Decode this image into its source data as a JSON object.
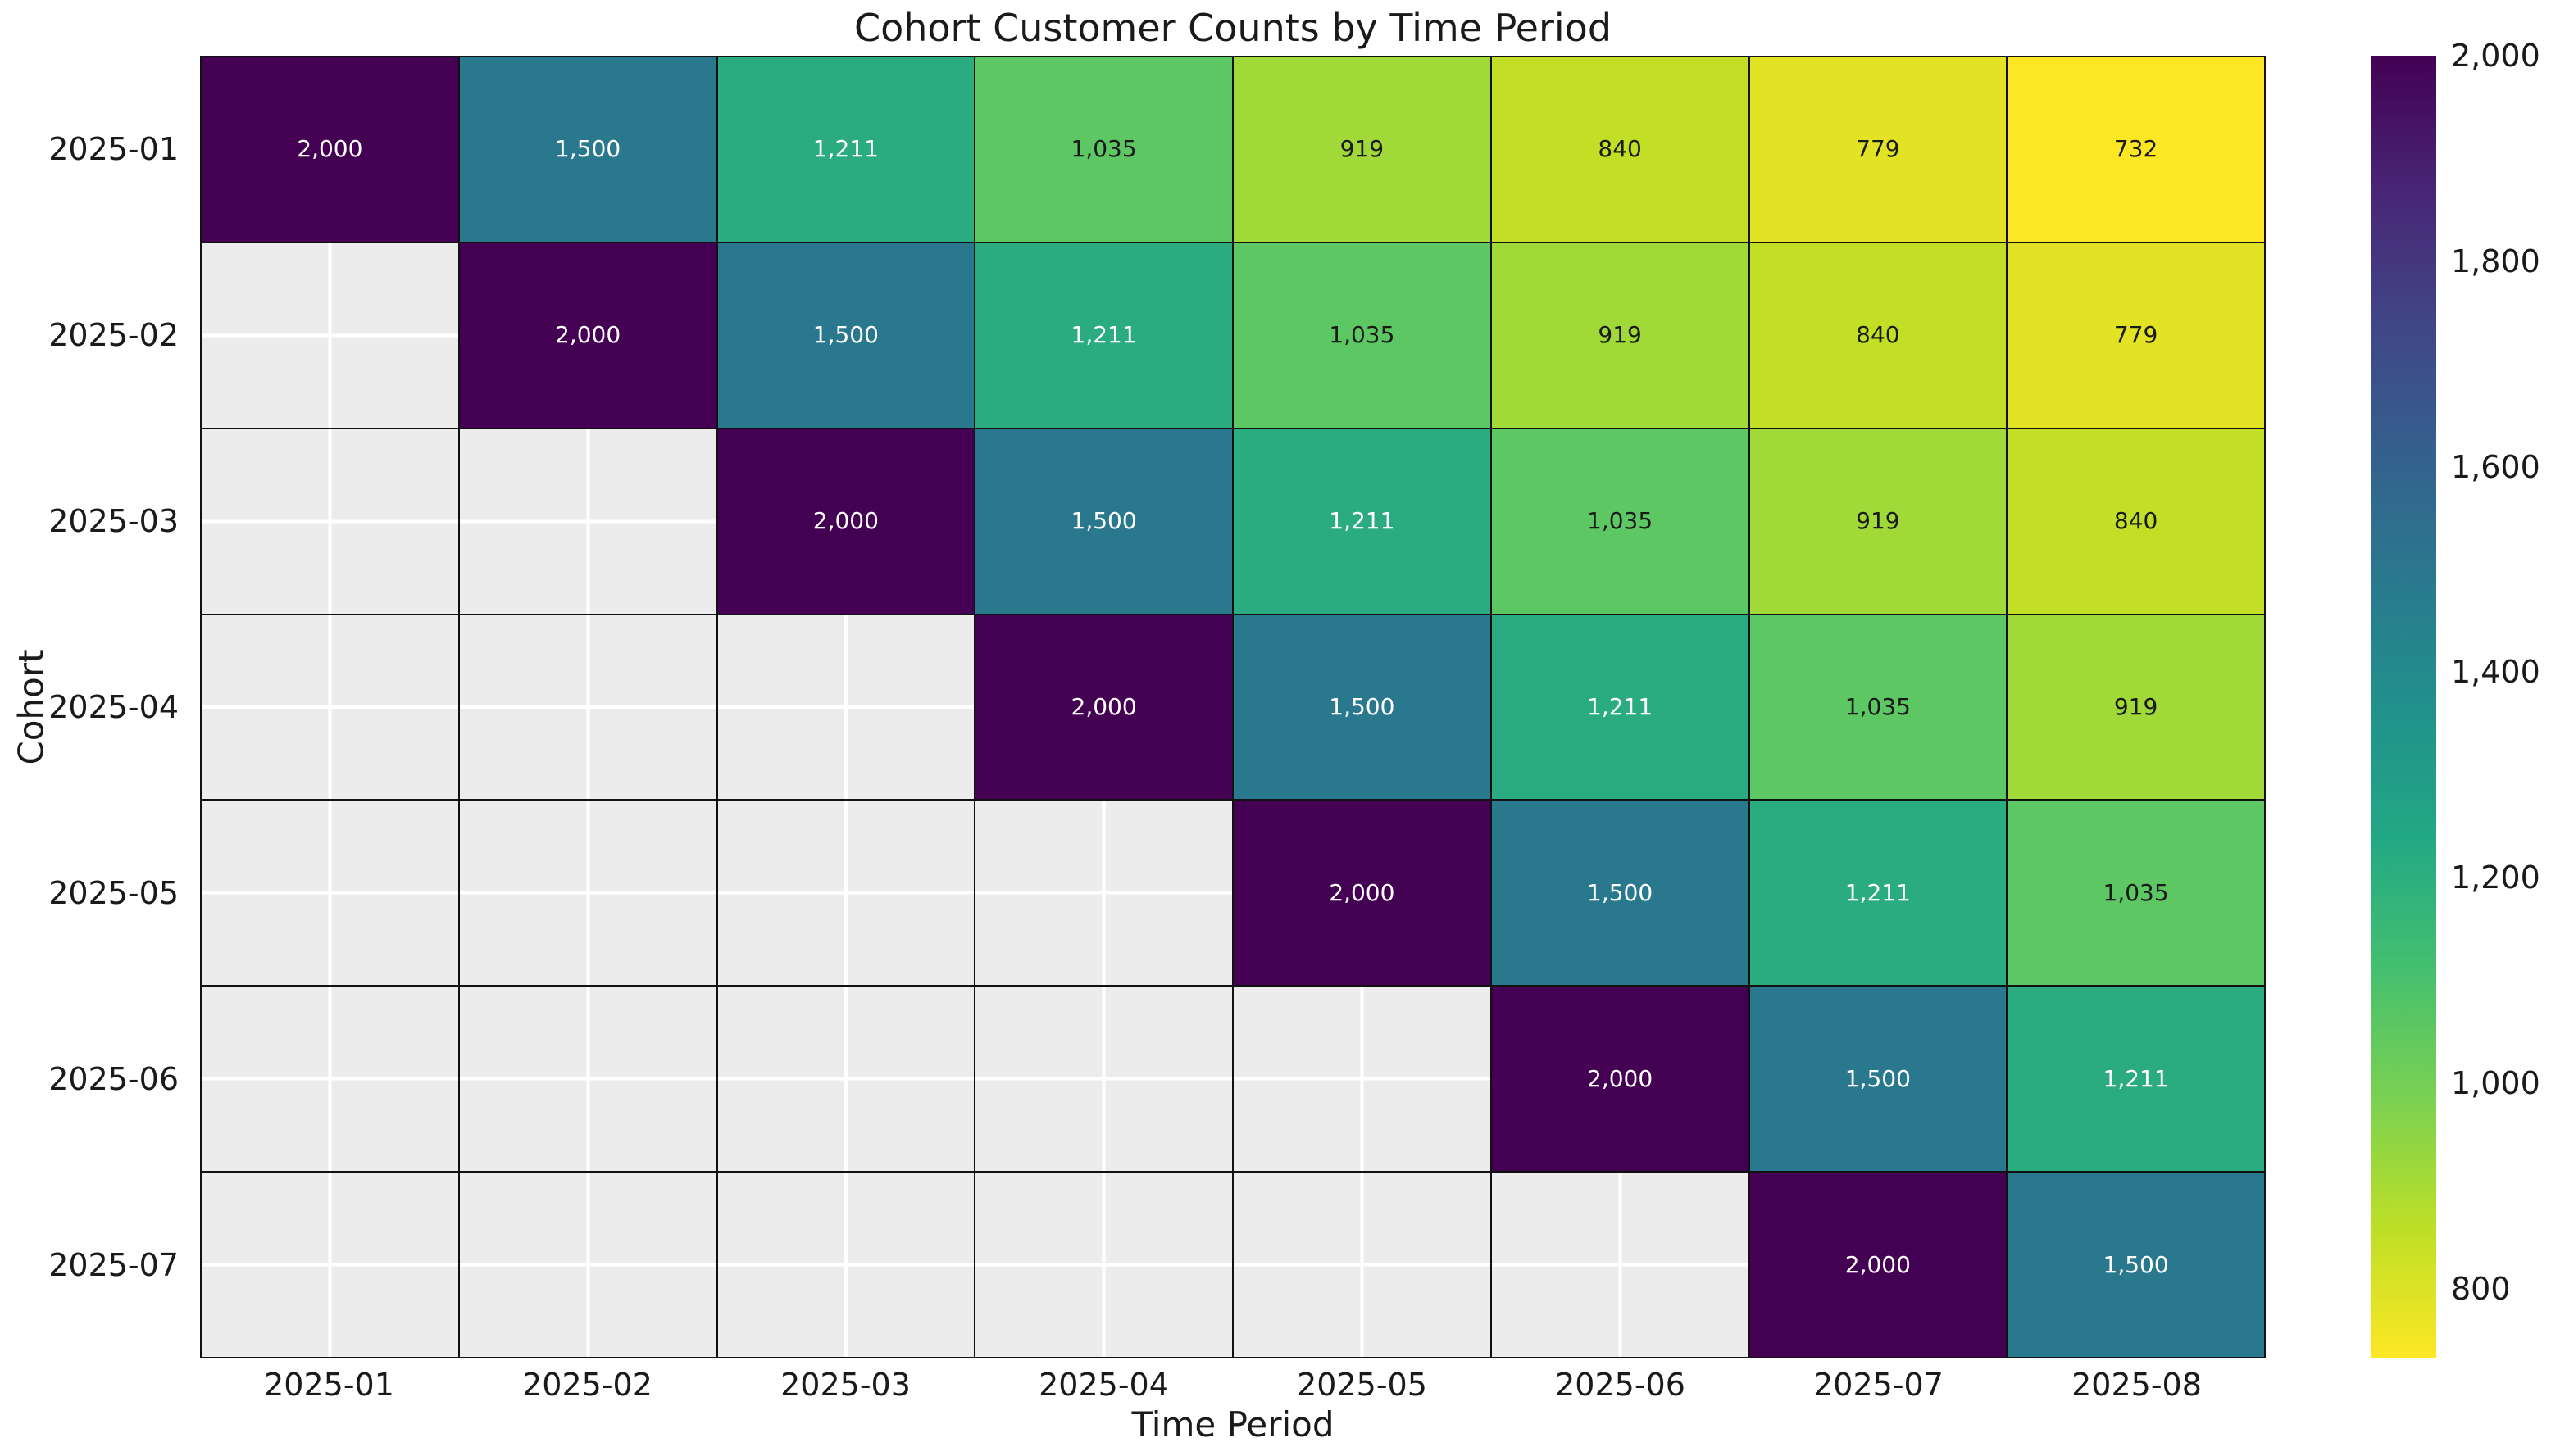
{
  "title": "Cohort Customer Counts by Time Period",
  "axes": {
    "x_title": "Time Period",
    "y_title": "Cohort"
  },
  "chart_data": {
    "type": "heatmap",
    "title": "Cohort Customer Counts by Time Period",
    "xlabel": "Time Period",
    "ylabel": "Cohort",
    "x_categories": [
      "2025-01",
      "2025-02",
      "2025-03",
      "2025-04",
      "2025-05",
      "2025-06",
      "2025-07",
      "2025-08"
    ],
    "y_categories": [
      "2025-01",
      "2025-02",
      "2025-03",
      "2025-04",
      "2025-05",
      "2025-06",
      "2025-07"
    ],
    "matrix": [
      [
        2000,
        1500,
        1211,
        1035,
        919,
        840,
        779,
        732
      ],
      [
        null,
        2000,
        1500,
        1211,
        1035,
        919,
        840,
        779
      ],
      [
        null,
        null,
        2000,
        1500,
        1211,
        1035,
        919,
        840
      ],
      [
        null,
        null,
        null,
        2000,
        1500,
        1211,
        1035,
        919
      ],
      [
        null,
        null,
        null,
        null,
        2000,
        1500,
        1211,
        1035
      ],
      [
        null,
        null,
        null,
        null,
        null,
        2000,
        1500,
        1211
      ],
      [
        null,
        null,
        null,
        null,
        null,
        null,
        2000,
        1500
      ]
    ],
    "colormap": "viridis_r",
    "vmin": 732,
    "vmax": 2000,
    "legend_position": "right-colorbar",
    "grid": "white gridlines at cell centers visible in masked cells; black lines at cell edges",
    "colorbar_tick_values": [
      2000,
      1800,
      1600,
      1400,
      1200,
      1000,
      800
    ],
    "colorbar_tick_labels": [
      "2,000",
      "1,800",
      "1,600",
      "1,400",
      "1,200",
      "1,000",
      "800"
    ],
    "value_colors": {
      "2000": "#440154",
      "1500": "#2a788e",
      "1211": "#2aab80",
      "1035": "#5dc863",
      "919": "#a0d938",
      "840": "#c2df25",
      "779": "#e1e324",
      "732": "#fde725"
    },
    "light_text_min_value": 1211,
    "text_colors": {
      "light": "#ffffff",
      "dark": "#1a1a1a"
    },
    "masked_color": "#ececec",
    "grid_line_color": "#111111",
    "colorbar_gradient_top_to_bottom": [
      "#440154",
      "#482475",
      "#414487",
      "#355f8d",
      "#2a788e",
      "#21918c",
      "#22a884",
      "#44bf70",
      "#7ad151",
      "#bddf26",
      "#fde725"
    ]
  }
}
